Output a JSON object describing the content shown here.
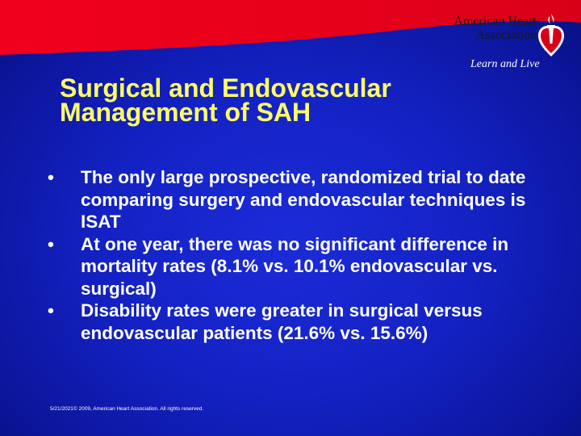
{
  "slide": {
    "title_line1": "Surgical and Endovascular",
    "title_line2": "Management of SAH",
    "bullet_glyph": "•",
    "bullets": [
      "The only large prospective, randomized trial to date comparing surgery and endovascular techniques is ISAT",
      "At one year, there was no significant difference in mortality rates (8.1% vs. 10.1% endovascular vs. surgical)",
      "Disability rates were greater in surgical versus endovascular patients (21.6% vs. 15.6%)"
    ],
    "footer": "5/21/2021© 2009, American Heart Association. All rights reserved."
  },
  "logo": {
    "name_line1": "American Heart",
    "name_line2": "Association",
    "tagline": "Learn and Live",
    "icon": "heart-torch-icon"
  },
  "colors": {
    "background": "#1422c4",
    "top_band": "#e8001e",
    "title": "#ffff66",
    "body_text": "#ffffff"
  }
}
